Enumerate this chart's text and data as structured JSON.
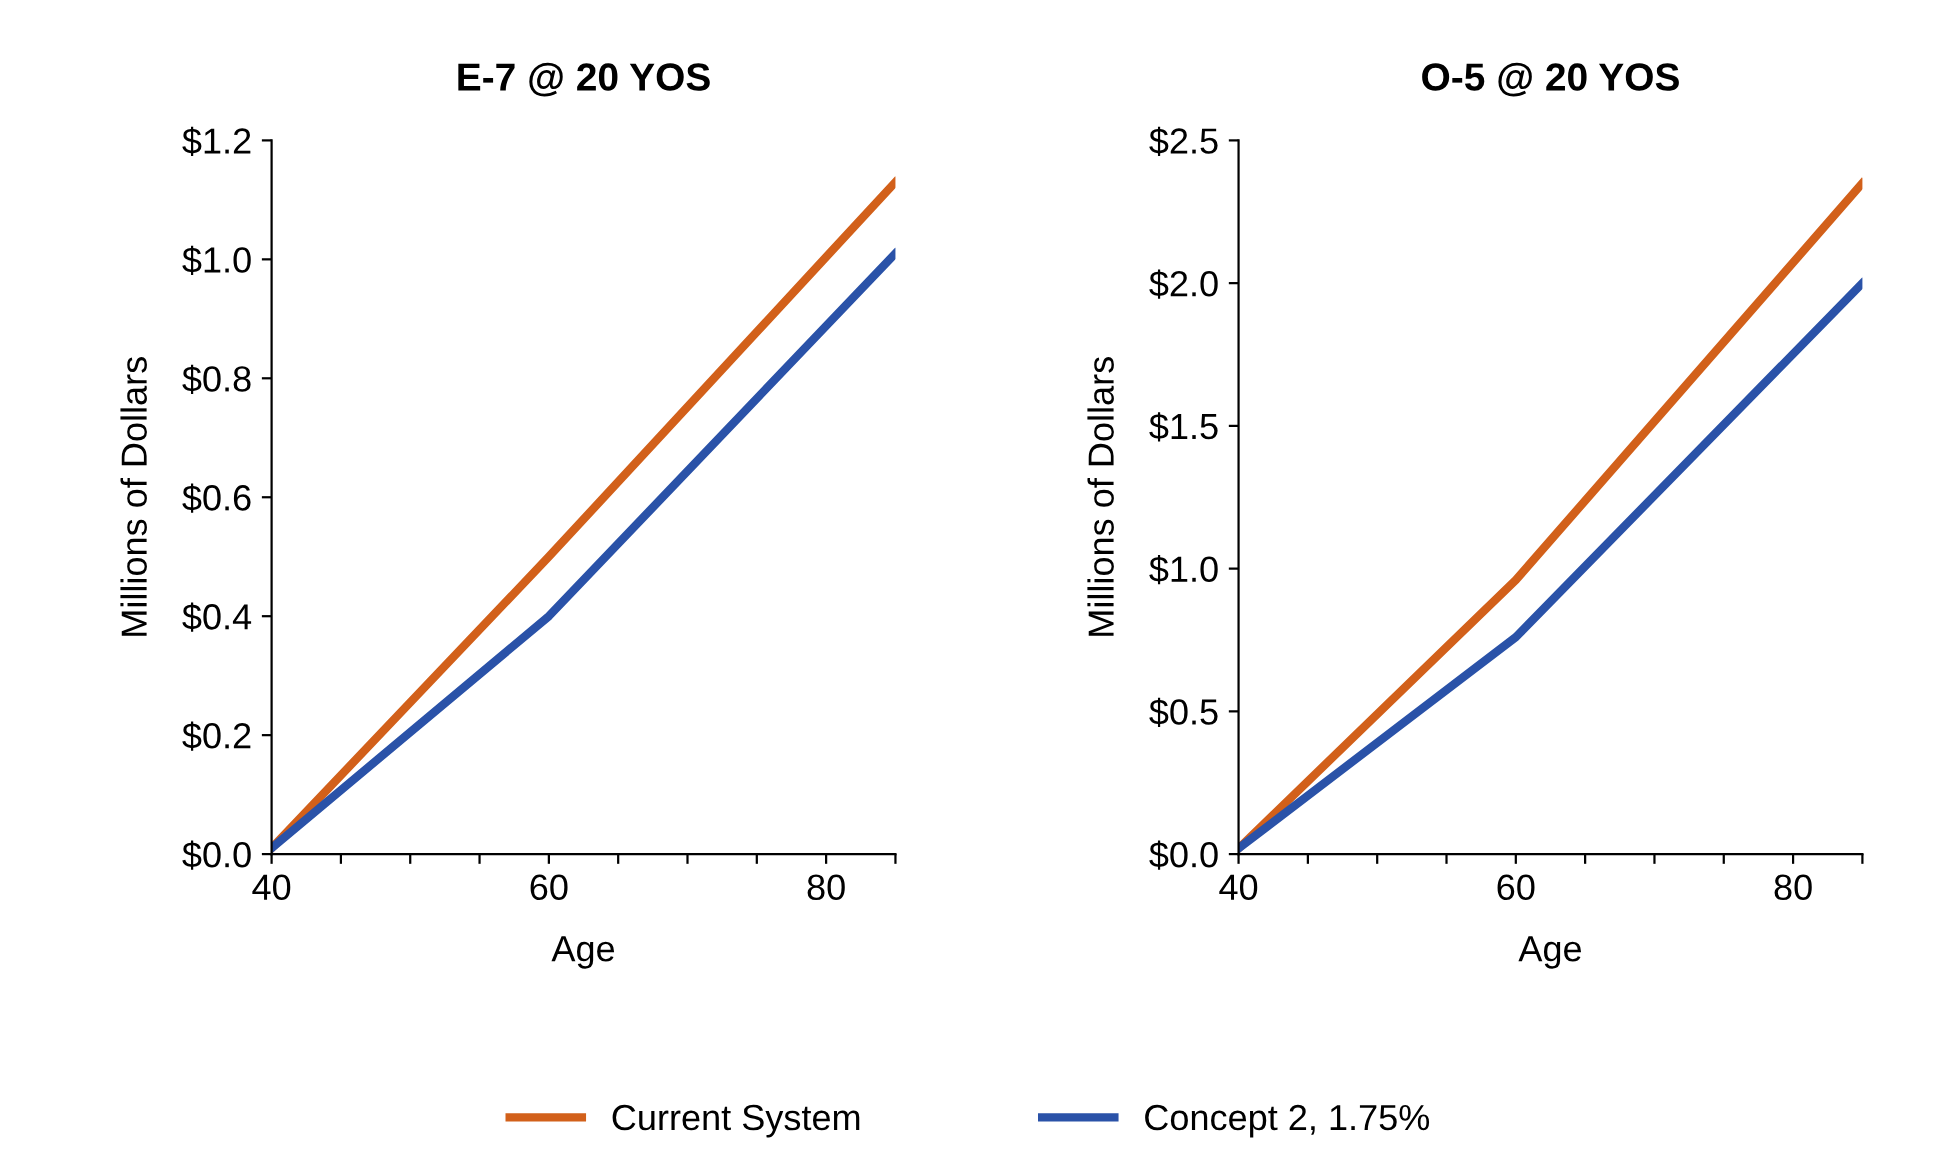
{
  "chart_data": [
    {
      "type": "line",
      "title": "E-7 @ 20 YOS",
      "xlabel": "Age",
      "ylabel": "Millions of Dollars",
      "xlim": [
        40,
        85
      ],
      "ylim": [
        0,
        1.2
      ],
      "xticks": [
        40,
        {
          "value": 45,
          "label": null
        },
        {
          "value": 50,
          "label": null
        },
        {
          "value": 55,
          "label": null
        },
        60,
        {
          "value": 65,
          "label": null
        },
        {
          "value": 70,
          "label": null
        },
        {
          "value": 75,
          "label": null
        },
        80,
        {
          "value": 85,
          "label": null
        }
      ],
      "yticks": [
        {
          "value": 0,
          "label": "$0.0"
        },
        {
          "value": 0.2,
          "label": "$0.2"
        },
        {
          "value": 0.4,
          "label": "$0.4"
        },
        {
          "value": 0.6,
          "label": "$0.6"
        },
        {
          "value": 0.8,
          "label": "$0.8"
        },
        {
          "value": 1.0,
          "label": "$1.0"
        },
        {
          "value": 1.2,
          "label": "$1.2"
        }
      ],
      "grid": false,
      "legend": "bottom",
      "x": [
        40,
        60,
        85
      ],
      "series": [
        {
          "name": "Current System",
          "color": "#d2601a",
          "values": [
            0.01,
            0.5,
            1.13
          ]
        },
        {
          "name": "Concept 2, 1.75%",
          "color": "#2a52a8",
          "values": [
            0.01,
            0.4,
            1.01
          ]
        }
      ]
    },
    {
      "type": "line",
      "title": "O-5 @ 20 YOS",
      "xlabel": "Age",
      "ylabel": "Millions of Dollars",
      "xlim": [
        40,
        85
      ],
      "ylim": [
        0,
        2.5
      ],
      "xticks": [
        40,
        {
          "value": 45,
          "label": null
        },
        {
          "value": 50,
          "label": null
        },
        {
          "value": 55,
          "label": null
        },
        60,
        {
          "value": 65,
          "label": null
        },
        {
          "value": 70,
          "label": null
        },
        {
          "value": 75,
          "label": null
        },
        80,
        {
          "value": 85,
          "label": null
        }
      ],
      "yticks": [
        {
          "value": 0,
          "label": "$0.0"
        },
        {
          "value": 0.5,
          "label": "$0.5"
        },
        {
          "value": 1.0,
          "label": "$1.0"
        },
        {
          "value": 1.5,
          "label": "$1.5"
        },
        {
          "value": 2.0,
          "label": "$2.0"
        },
        {
          "value": 2.5,
          "label": "$2.5"
        }
      ],
      "grid": false,
      "x": [
        40,
        60,
        85
      ],
      "series": [
        {
          "name": "Current System",
          "color": "#d2601a",
          "values": [
            0.02,
            0.96,
            2.35
          ]
        },
        {
          "name": "Concept 2, 1.75%",
          "color": "#2a52a8",
          "values": [
            0.02,
            0.76,
            2.0
          ]
        }
      ]
    }
  ]
}
